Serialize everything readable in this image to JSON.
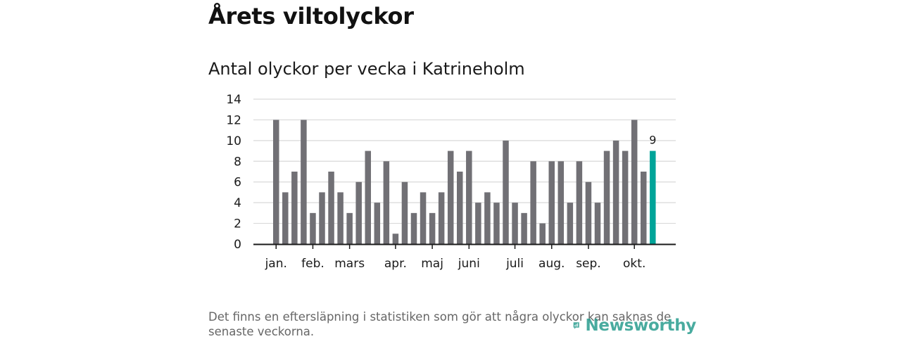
{
  "title": "Årets viltolyckor",
  "subtitle": "Antal olyckor per vecka i Katrineholm",
  "footnote": "Det finns en eftersläpning i statistiken som gör att några olyckor kan saknas de senaste veckorna.",
  "brand": {
    "name": "Newsworthy",
    "color": "#2a9d8f"
  },
  "colors": {
    "bar": "#717075",
    "highlight": "#00a499",
    "grid": "#d9d9d9",
    "axis": "#1a1a1a"
  },
  "chart_data": {
    "type": "bar",
    "title": "Antal olyckor per vecka i Katrineholm",
    "xlabel": "",
    "ylabel": "",
    "ylim": [
      0,
      14
    ],
    "yticks": [
      0,
      2,
      4,
      6,
      8,
      10,
      12,
      14
    ],
    "grid": true,
    "weeks": [
      1,
      2,
      3,
      4,
      5,
      6,
      7,
      8,
      9,
      10,
      11,
      12,
      13,
      14,
      15,
      16,
      17,
      18,
      19,
      20,
      21,
      22,
      23,
      24,
      25,
      26,
      27,
      28,
      29,
      30,
      31,
      32,
      33,
      34,
      35,
      36,
      37,
      38,
      39,
      40,
      41,
      42
    ],
    "values": [
      12,
      5,
      7,
      12,
      3,
      5,
      7,
      5,
      3,
      6,
      9,
      4,
      8,
      1,
      6,
      3,
      5,
      3,
      5,
      9,
      7,
      9,
      4,
      5,
      4,
      10,
      4,
      3,
      8,
      2,
      8,
      8,
      4,
      8,
      6,
      4,
      9,
      10,
      9,
      12,
      7,
      9
    ],
    "highlight_index": 41,
    "highlight_label": "9",
    "month_labels": [
      {
        "label": "jan.",
        "week": 1
      },
      {
        "label": "feb.",
        "week": 5
      },
      {
        "label": "mars",
        "week": 9
      },
      {
        "label": "apr.",
        "week": 14
      },
      {
        "label": "maj",
        "week": 18
      },
      {
        "label": "juni",
        "week": 22
      },
      {
        "label": "juli",
        "week": 27
      },
      {
        "label": "aug.",
        "week": 31
      },
      {
        "label": "sep.",
        "week": 35
      },
      {
        "label": "okt.",
        "week": 40
      }
    ]
  }
}
